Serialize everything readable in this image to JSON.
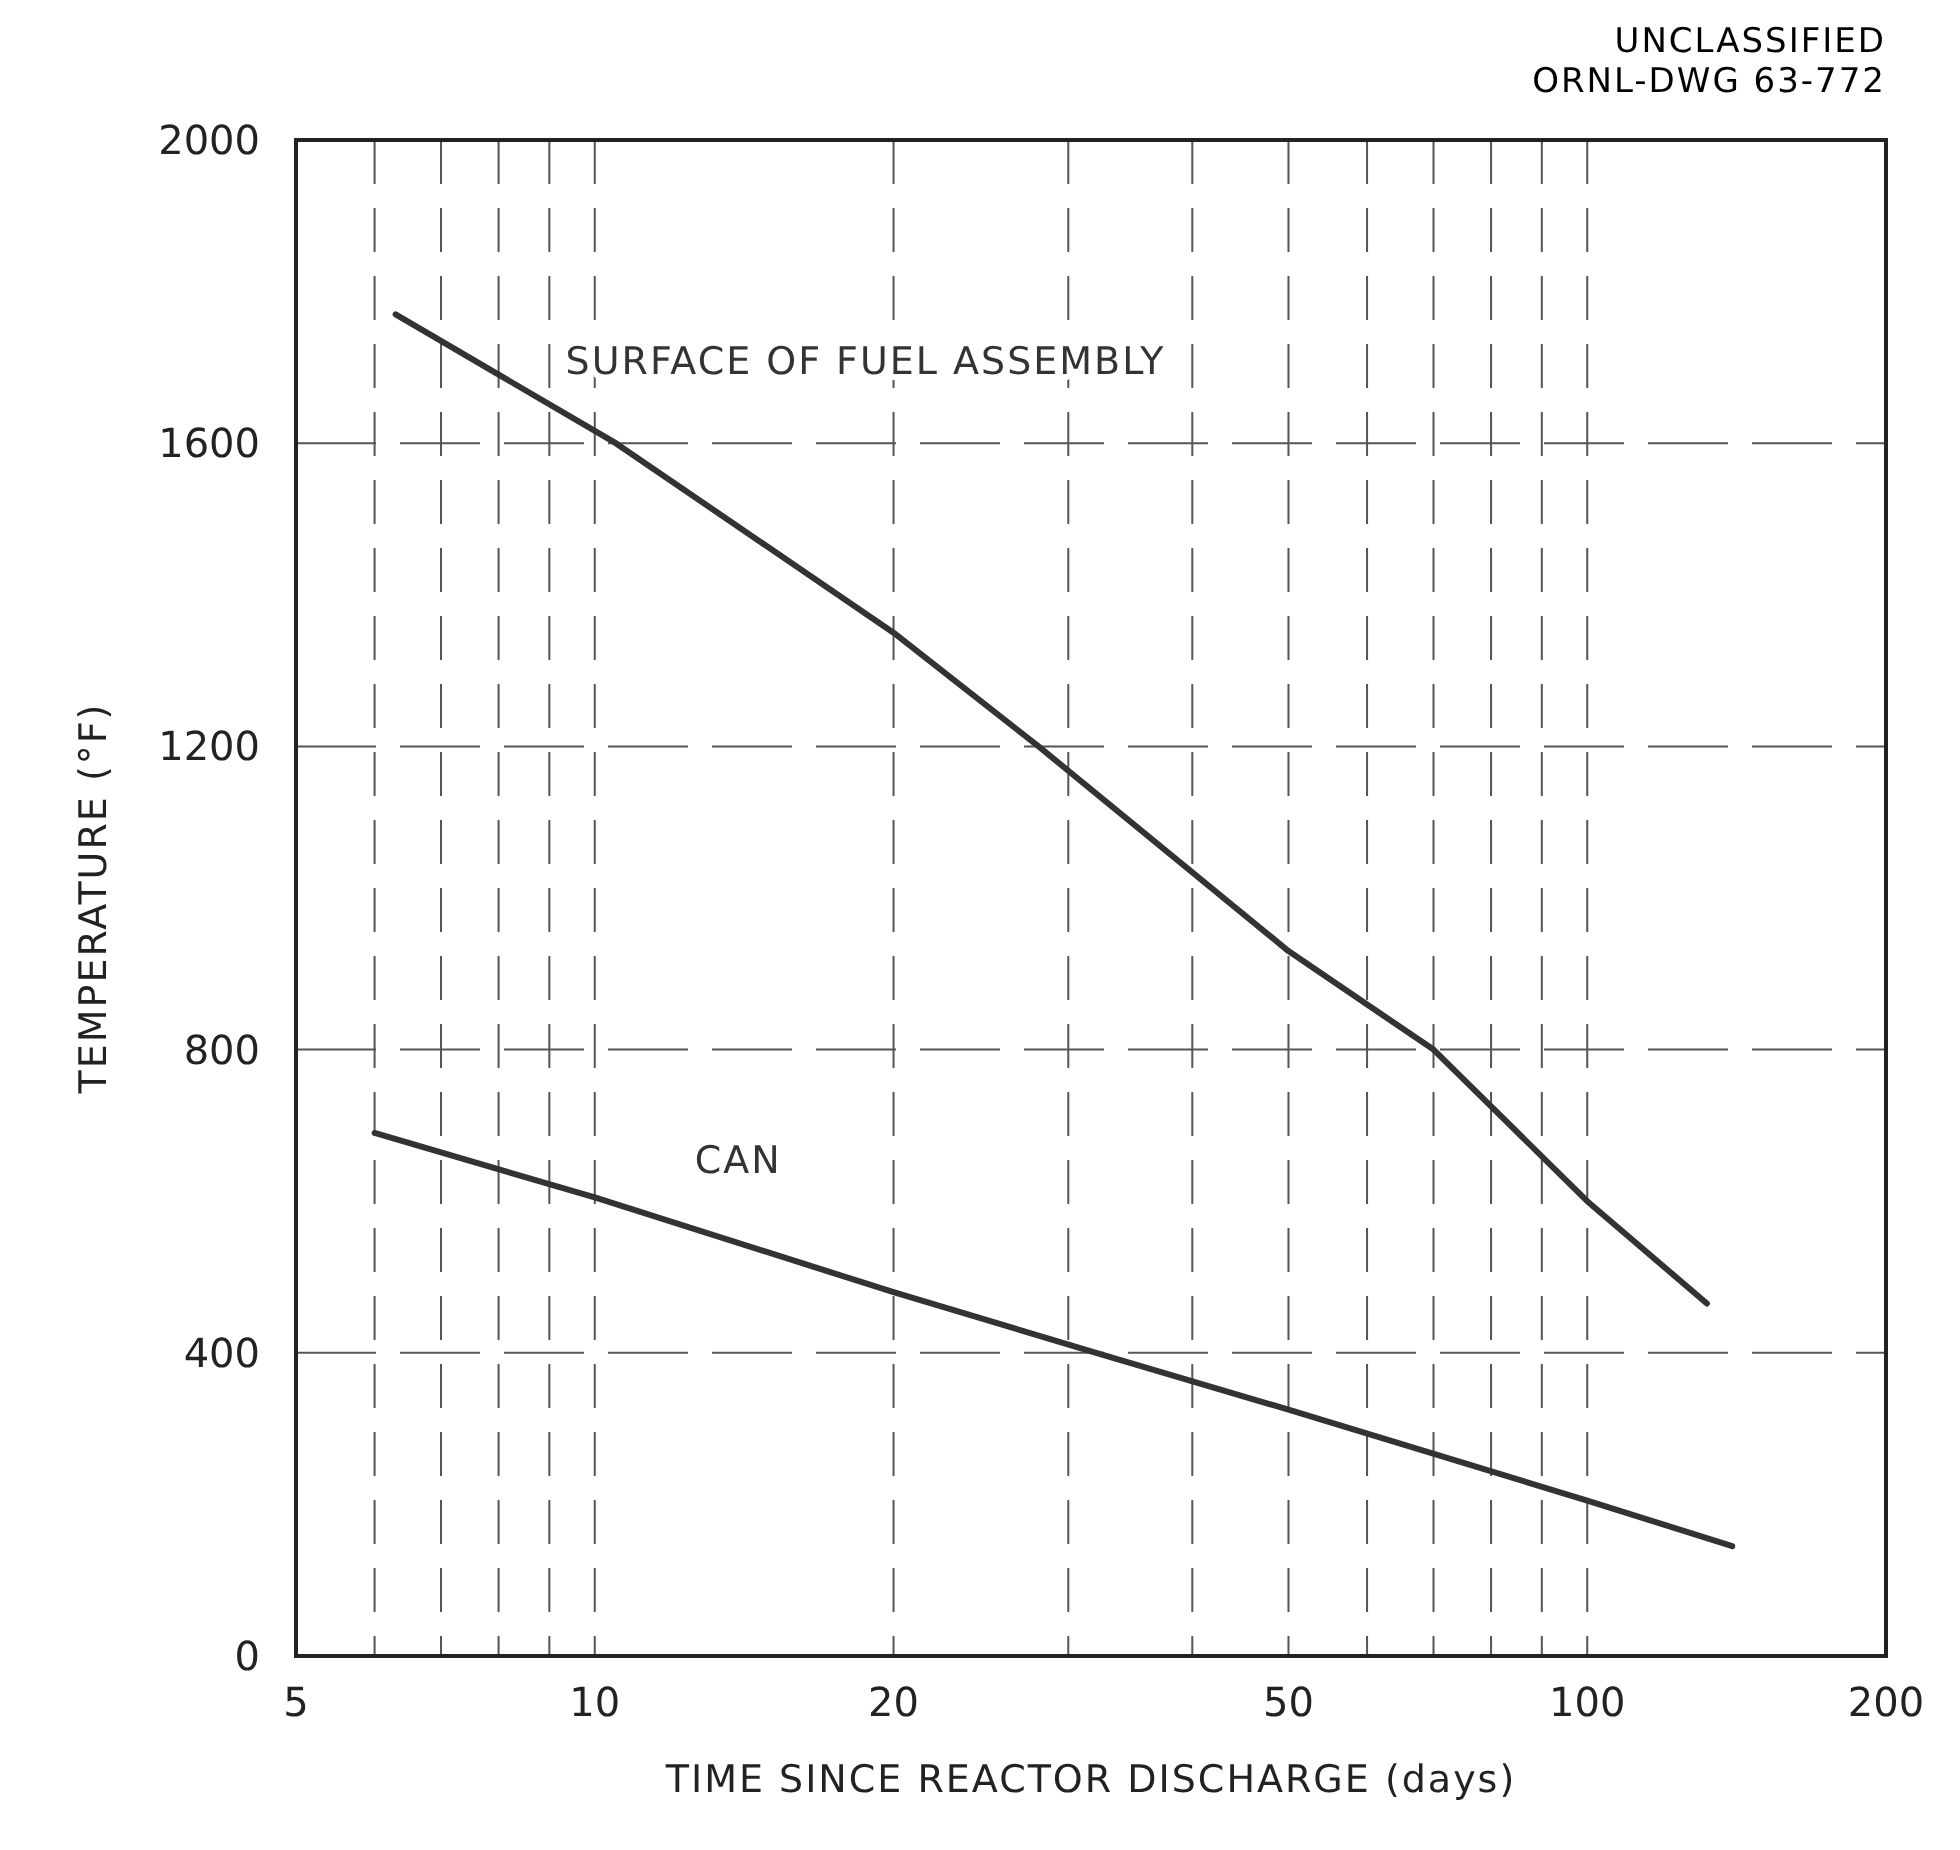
{
  "chart_data": {
    "type": "line",
    "xlabel": "TIME SINCE REACTOR DISCHARGE (days)",
    "ylabel": "TEMPERATURE (°F)",
    "annotations": [
      "UNCLASSIFIED",
      "ORNL-DWG 63-772"
    ],
    "log": "x",
    "xlim": [
      5,
      200
    ],
    "xticks": [
      5,
      {
        "value": 6,
        "label": null
      },
      {
        "value": 7,
        "label": null
      },
      {
        "value": 8,
        "label": null
      },
      {
        "value": 9,
        "label": null
      },
      10,
      20,
      {
        "value": 30,
        "label": null
      },
      {
        "value": 40,
        "label": null
      },
      50,
      {
        "value": 60,
        "label": null
      },
      {
        "value": 70,
        "label": null
      },
      {
        "value": 80,
        "label": null
      },
      {
        "value": 90,
        "label": null
      },
      100,
      200
    ],
    "ylim": [
      0,
      2000
    ],
    "yticks": [
      0,
      400,
      800,
      1200,
      1600,
      2000
    ],
    "grid": true,
    "line_style": "solid",
    "marker": "none",
    "series": [
      {
        "name": "SURFACE OF FUEL ASSEMBLY",
        "color": "#333333",
        "x": [
          6.3,
          10.5,
          20,
          28,
          50,
          70,
          100,
          132
        ],
        "values": [
          1770,
          1600,
          1350,
          1200,
          930,
          800,
          600,
          465
        ]
      },
      {
        "name": "CAN",
        "color": "#333333",
        "x": [
          6,
          10,
          20,
          32,
          50,
          100,
          140
        ],
        "values": [
          690,
          605,
          480,
          400,
          325,
          205,
          145
        ]
      }
    ]
  }
}
